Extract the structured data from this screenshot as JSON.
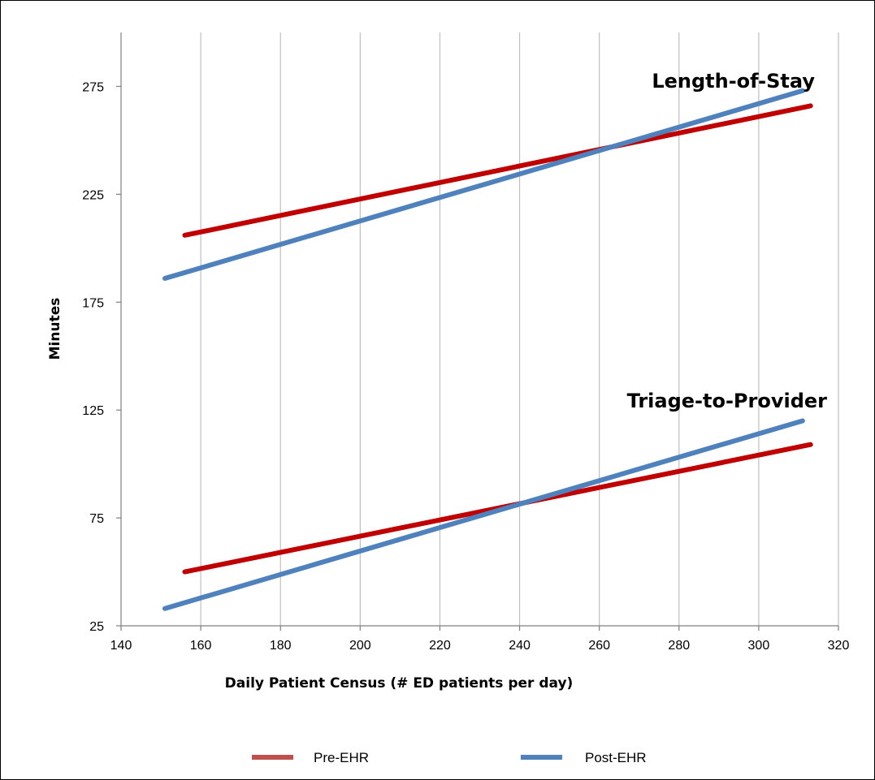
{
  "chart_data": {
    "type": "line",
    "xlabel": "Daily Patient Census (# ED patients per day)",
    "ylabel": "Minutes",
    "xlim": [
      140,
      320
    ],
    "ylim": [
      25,
      300
    ],
    "xticks": [
      140,
      160,
      180,
      200,
      220,
      240,
      260,
      280,
      300,
      320
    ],
    "yticks": [
      25,
      75,
      125,
      175,
      225,
      275
    ],
    "grid": "vertical",
    "legend_position": "bottom",
    "annotations": [
      {
        "text": "Length-of-Stay",
        "x": 302,
        "y": 287
      },
      {
        "text": "Triage-to-Provider",
        "x": 302,
        "y": 131
      }
    ],
    "series": [
      {
        "name": "Pre-EHR",
        "color": "#c00000",
        "legend_color": "#c0504d",
        "segments": [
          {
            "x": [
              156,
              313
            ],
            "y": [
              206,
              266
            ]
          },
          {
            "x": [
              156,
              313
            ],
            "y": [
              50,
              109
            ]
          }
        ]
      },
      {
        "name": "Post-EHR",
        "color": "#4f81bd",
        "legend_color": "#4f81bd",
        "segments": [
          {
            "x": [
              151,
              311
            ],
            "y": [
              186,
              273
            ]
          },
          {
            "x": [
              151,
              311
            ],
            "y": [
              33,
              120
            ]
          }
        ]
      }
    ]
  }
}
